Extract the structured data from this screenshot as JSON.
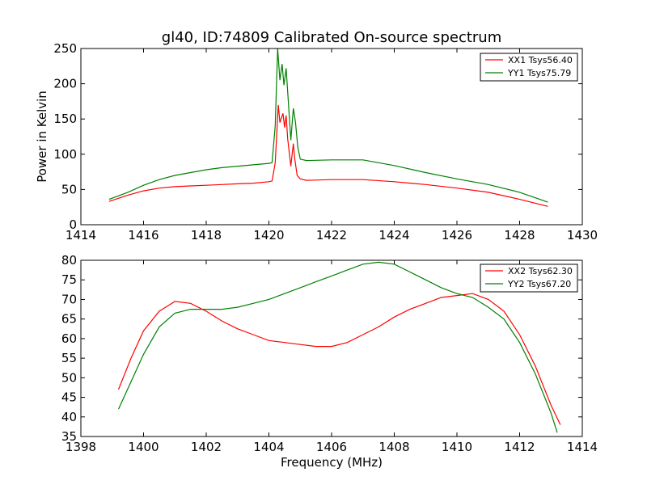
{
  "chart_data": [
    {
      "type": "line",
      "title": "gl40, ID:74809 Calibrated On-source spectrum",
      "xlabel": "",
      "ylabel": "Power in Kelvin",
      "xlim": [
        1414,
        1430
      ],
      "ylim": [
        0,
        250
      ],
      "xticks": [
        1414,
        1416,
        1418,
        1420,
        1422,
        1424,
        1426,
        1428,
        1430
      ],
      "yticks": [
        0,
        50,
        100,
        150,
        200,
        250
      ],
      "legend_position": "top-right",
      "series": [
        {
          "name": "XX1 Tsys56.40",
          "color": "#ff0000",
          "x": [
            1414.9,
            1415.5,
            1416.0,
            1416.5,
            1417.0,
            1417.5,
            1418.0,
            1418.5,
            1419.0,
            1419.5,
            1420.0,
            1420.1,
            1420.2,
            1420.3,
            1420.35,
            1420.45,
            1420.5,
            1420.55,
            1420.6,
            1420.7,
            1420.78,
            1420.82,
            1420.9,
            1421.0,
            1421.2,
            1422.0,
            1423.0,
            1424.0,
            1425.0,
            1426.0,
            1427.0,
            1428.0,
            1428.9
          ],
          "y": [
            33,
            42,
            48,
            52,
            54,
            55,
            56,
            57,
            58,
            59,
            61,
            62,
            88,
            170,
            145,
            158,
            138,
            155,
            122,
            83,
            115,
            95,
            70,
            65,
            63,
            64,
            64,
            61,
            57,
            52,
            46,
            36,
            26
          ]
        },
        {
          "name": "YY1 Tsys75.79",
          "color": "#008000",
          "x": [
            1414.9,
            1415.5,
            1416.0,
            1416.5,
            1417.0,
            1417.5,
            1418.0,
            1418.5,
            1419.0,
            1419.5,
            1420.0,
            1420.1,
            1420.2,
            1420.28,
            1420.35,
            1420.42,
            1420.48,
            1420.55,
            1420.62,
            1420.7,
            1420.78,
            1420.85,
            1420.92,
            1421.0,
            1421.2,
            1422.0,
            1423.0,
            1424.0,
            1425.0,
            1426.0,
            1427.0,
            1428.0,
            1428.9
          ],
          "y": [
            36,
            46,
            56,
            64,
            70,
            74,
            78,
            81,
            83,
            85,
            87,
            88,
            140,
            250,
            205,
            228,
            198,
            222,
            175,
            120,
            165,
            145,
            110,
            93,
            91,
            92,
            92,
            84,
            74,
            65,
            57,
            46,
            32
          ]
        }
      ]
    },
    {
      "type": "line",
      "title": "",
      "xlabel": "Frequency (MHz)",
      "ylabel": "",
      "xlim": [
        1398,
        1414
      ],
      "ylim": [
        35,
        80
      ],
      "xticks": [
        1398,
        1400,
        1402,
        1404,
        1406,
        1408,
        1410,
        1412,
        1414
      ],
      "yticks": [
        35,
        40,
        45,
        50,
        55,
        60,
        65,
        70,
        75,
        80
      ],
      "legend_position": "top-right",
      "series": [
        {
          "name": "XX2 Tsys62.30",
          "color": "#ff0000",
          "x": [
            1399.2,
            1399.6,
            1400.0,
            1400.5,
            1401.0,
            1401.5,
            1402.0,
            1402.5,
            1403.0,
            1403.5,
            1404.0,
            1404.5,
            1405.0,
            1405.5,
            1406.0,
            1406.5,
            1407.0,
            1407.5,
            1408.0,
            1408.5,
            1409.0,
            1409.5,
            1410.0,
            1410.5,
            1411.0,
            1411.5,
            1412.0,
            1412.5,
            1413.0,
            1413.3
          ],
          "y": [
            47,
            55,
            62,
            67,
            69.5,
            69,
            67,
            64.5,
            62.5,
            61,
            59.5,
            59,
            58.5,
            58,
            58,
            59,
            61,
            63,
            65.5,
            67.5,
            69,
            70.5,
            71,
            71.5,
            70,
            67,
            61,
            53,
            43,
            38
          ]
        },
        {
          "name": "YY2 Tsys67.20",
          "color": "#008000",
          "x": [
            1399.2,
            1399.6,
            1400.0,
            1400.5,
            1401.0,
            1401.5,
            1402.0,
            1402.5,
            1403.0,
            1403.5,
            1404.0,
            1404.5,
            1405.0,
            1405.5,
            1406.0,
            1406.5,
            1407.0,
            1407.5,
            1408.0,
            1408.5,
            1409.0,
            1409.5,
            1410.0,
            1410.5,
            1411.0,
            1411.5,
            1412.0,
            1412.5,
            1413.0,
            1413.2
          ],
          "y": [
            42,
            49,
            56,
            63,
            66.5,
            67.5,
            67.5,
            67.5,
            68,
            69,
            70,
            71.5,
            73,
            74.5,
            76,
            77.5,
            79,
            79.5,
            79,
            77,
            75,
            73,
            71.5,
            70.5,
            68,
            65,
            59,
            51,
            41,
            36
          ]
        }
      ]
    }
  ]
}
